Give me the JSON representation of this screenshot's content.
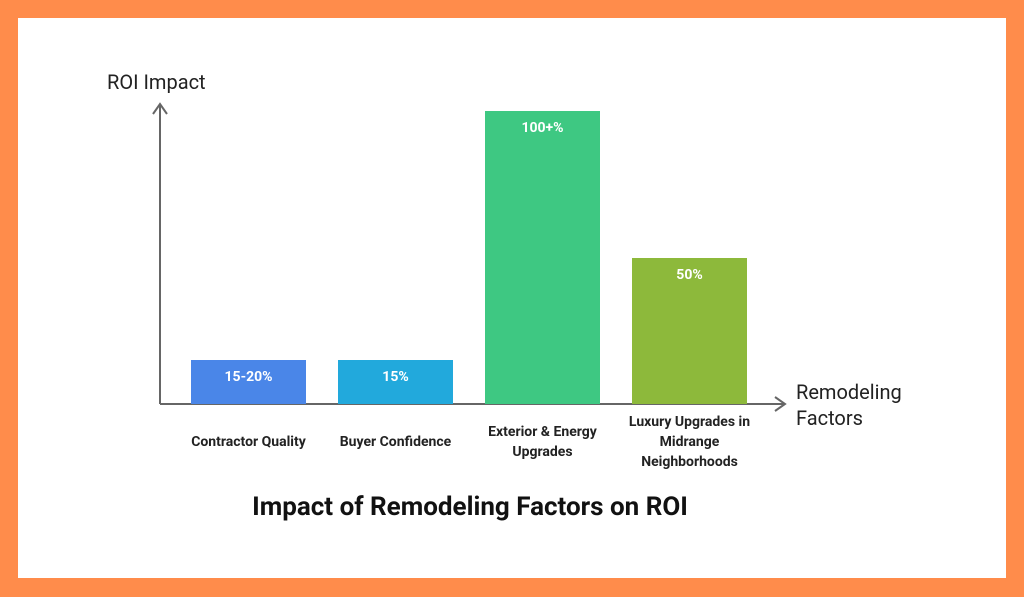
{
  "chart_data": {
    "type": "bar",
    "title": "Impact of Remodeling Factors on ROI",
    "y_label": "ROI Impact",
    "x_label": "Remodeling Factors",
    "categories": [
      "Contractor Quality",
      "Buyer Confidence",
      "Exterior & Energy Upgrades",
      "Luxury Upgrades in Midrange Neighborhoods"
    ],
    "values": [
      15,
      15,
      100,
      50
    ],
    "value_labels": [
      "15-20%",
      "15%",
      "100+%",
      "50%"
    ],
    "colors": [
      "#4a86e8",
      "#22a9dc",
      "#3ec882",
      "#8db93b"
    ]
  }
}
